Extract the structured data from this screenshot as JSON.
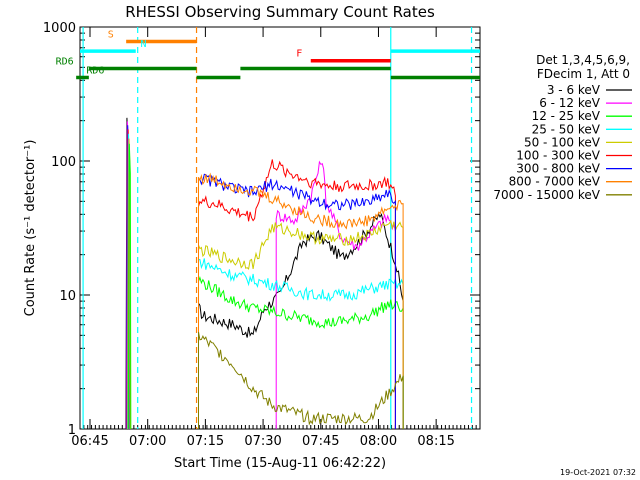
{
  "chart_data": {
    "type": "line",
    "title": "RHESSI Observing Summary Count Rates",
    "xlabel": "Start Time (15-Aug-11 06:42:22)",
    "ylabel": "Count Rate (s⁻¹ detector⁻¹)",
    "yscale": "log",
    "ylim": [
      1,
      1000
    ],
    "xlim_min": [
      0,
      104
    ],
    "x_ticks": [
      {
        "min": 2.6,
        "label": "06:45"
      },
      {
        "min": 17.6,
        "label": "07:00"
      },
      {
        "min": 32.6,
        "label": "07:15"
      },
      {
        "min": 47.6,
        "label": "07:30"
      },
      {
        "min": 62.6,
        "label": "07:45"
      },
      {
        "min": 77.6,
        "label": "08:00"
      },
      {
        "min": 92.6,
        "label": "08:15"
      }
    ],
    "y_ticks": [
      {
        "value": 1,
        "label": "1"
      },
      {
        "value": 10,
        "label": "10"
      },
      {
        "value": 100,
        "label": "100"
      },
      {
        "value": 1000,
        "label": "1000"
      }
    ],
    "legend": {
      "placement": "right",
      "header": [
        "Det 1,3,4,5,6,9,",
        "FDecim 1, Att 0"
      ],
      "entries": [
        {
          "name": "3 - 6 keV",
          "color": "#000000"
        },
        {
          "name": "6 - 12 keV",
          "color": "#ff00ff"
        },
        {
          "name": "12 - 25 keV",
          "color": "#00ff00"
        },
        {
          "name": "25 - 50 keV",
          "color": "#00ffff"
        },
        {
          "name": "50 - 100 keV",
          "color": "#cccc00"
        },
        {
          "name": "100 - 300 keV",
          "color": "#ff0000"
        },
        {
          "name": "300 - 800 keV",
          "color": "#0000ff"
        },
        {
          "name": "800 - 7000 keV",
          "color": "#ff8000"
        },
        {
          "name": "7000 - 15000 keV",
          "color": "#808000"
        }
      ]
    },
    "series": [
      {
        "color": "#000000",
        "segments": [
          [
            [
              30.8,
              8
            ],
            [
              32,
              7
            ],
            [
              40,
              6
            ],
            [
              45,
              5
            ],
            [
              48,
              8
            ],
            [
              52,
              10
            ],
            [
              58,
              25
            ],
            [
              62,
              28
            ],
            [
              68,
              19
            ],
            [
              72,
              24
            ],
            [
              78,
              40
            ],
            [
              82,
              18
            ],
            [
              84,
              9
            ]
          ]
        ]
      },
      {
        "color": "#ff00ff",
        "segments": [
          [
            [
              51,
              40
            ],
            [
              56,
              36
            ],
            [
              60,
              55
            ],
            [
              63,
              105
            ],
            [
              64,
              50
            ],
            [
              68,
              27
            ],
            [
              72,
              23
            ],
            [
              76,
              30
            ],
            [
              80,
              38
            ],
            [
              82,
              30
            ]
          ]
        ]
      },
      {
        "color": "#00ff00",
        "segments": [
          [
            [
              30.8,
              13
            ],
            [
              35,
              11
            ],
            [
              40,
              9
            ],
            [
              45,
              8
            ],
            [
              50,
              7.5
            ],
            [
              55,
              7
            ],
            [
              60,
              6.5
            ],
            [
              65,
              6.2
            ],
            [
              70,
              6.5
            ],
            [
              75,
              7
            ],
            [
              80,
              8.5
            ],
            [
              84,
              8
            ]
          ]
        ]
      },
      {
        "color": "#00ffff",
        "segments": [
          [
            [
              30.8,
              18
            ],
            [
              35,
              16
            ],
            [
              40,
              14
            ],
            [
              45,
              13
            ],
            [
              50,
              12
            ],
            [
              55,
              11
            ],
            [
              60,
              10
            ],
            [
              65,
              10
            ],
            [
              70,
              10
            ],
            [
              75,
              11
            ],
            [
              80,
              12
            ],
            [
              84,
              12
            ]
          ]
        ]
      },
      {
        "color": "#cccc00",
        "segments": [
          [
            [
              30.8,
              22
            ],
            [
              35,
              20
            ],
            [
              40,
              18
            ],
            [
              45,
              17
            ],
            [
              50,
              32
            ],
            [
              55,
              30
            ],
            [
              60,
              27
            ],
            [
              65,
              26
            ],
            [
              70,
              26
            ],
            [
              75,
              28
            ],
            [
              80,
              34
            ],
            [
              84,
              32
            ]
          ]
        ]
      },
      {
        "color": "#ff0000",
        "segments": [
          [
            [
              30.8,
              50
            ],
            [
              35,
              48
            ],
            [
              40,
              42
            ],
            [
              45,
              38
            ],
            [
              50,
              95
            ],
            [
              55,
              80
            ],
            [
              60,
              70
            ],
            [
              65,
              65
            ],
            [
              70,
              65
            ],
            [
              75,
              65
            ],
            [
              80,
              70
            ],
            [
              82,
              55
            ]
          ]
        ]
      },
      {
        "color": "#0000ff",
        "segments": [
          [
            [
              30.8,
              75
            ],
            [
              35,
              70
            ],
            [
              40,
              62
            ],
            [
              45,
              58
            ],
            [
              50,
              68
            ],
            [
              55,
              60
            ],
            [
              60,
              52
            ],
            [
              65,
              48
            ],
            [
              70,
              47
            ],
            [
              75,
              50
            ],
            [
              80,
              58
            ],
            [
              82,
              50
            ]
          ]
        ]
      },
      {
        "color": "#ff8000",
        "segments": [
          [
            [
              30.8,
              75
            ],
            [
              35,
              72
            ],
            [
              40,
              65
            ],
            [
              45,
              60
            ],
            [
              50,
              52
            ],
            [
              55,
              45
            ],
            [
              60,
              38
            ],
            [
              65,
              35
            ],
            [
              70,
              34
            ],
            [
              75,
              36
            ],
            [
              80,
              44
            ],
            [
              84,
              48
            ]
          ]
        ]
      },
      {
        "color": "#808000",
        "segments": [
          [
            [
              30.8,
              5
            ],
            [
              35,
              4
            ],
            [
              40,
              3
            ],
            [
              45,
              2
            ],
            [
              50,
              1.5
            ],
            [
              60,
              1.2
            ],
            [
              75,
              1.2
            ],
            [
              80,
              1.8
            ],
            [
              84,
              2.5
            ]
          ]
        ]
      }
    ],
    "flare_spike": {
      "colors": [
        "#000000",
        "#ff00ff",
        "#0000ff",
        "#ff0000",
        "#00ffff",
        "#ff8000",
        "#00ff00"
      ],
      "x_min": 12.2,
      "peak": 210,
      "base": 1
    },
    "vertical_lines": [
      {
        "min": 0.8,
        "color": "#00ffff",
        "style": "solid"
      },
      {
        "min": 15.0,
        "color": "#00ffff",
        "style": "dashed"
      },
      {
        "min": 30.3,
        "color": "#ff8000",
        "style": "dashed"
      },
      {
        "min": 80.8,
        "color": "#00ffff",
        "style": "solid"
      },
      {
        "min": 101.8,
        "color": "#00ffff",
        "style": "dashed"
      }
    ],
    "flag_bars": [
      {
        "label": "S",
        "color": "#ff8000",
        "y": 780,
        "from": 12.0,
        "to": 30.3,
        "label_at": 8.0,
        "label_color": "#ff8000"
      },
      {
        "label": "N",
        "color": "#00ffff",
        "y": 660,
        "from": 0.0,
        "to": 14.5,
        "label_at": 16.5,
        "label_color": "#00ffff"
      },
      {
        "label": "F",
        "color": "#ff0000",
        "y": 560,
        "from": 60.0,
        "to": 80.8,
        "label_at": 57.0,
        "label_color": "#ff0000"
      },
      {
        "label": "",
        "color": "#00ffff",
        "y": 660,
        "from": 80.8,
        "to": 104.0,
        "label_at": null,
        "label_color": "#00ffff"
      },
      {
        "label": "RD6",
        "color": "#008000",
        "y": 490,
        "from": 2.3,
        "to": 30.3,
        "label_at": -4.0,
        "label_color": "#008000"
      },
      {
        "label": "",
        "color": "#008000",
        "y": 490,
        "from": 41.7,
        "to": 80.8,
        "label_at": null,
        "label_color": "#008000"
      },
      {
        "label": "RD6",
        "color": "#008000",
        "y": 420,
        "from": -1.0,
        "to": 2.3,
        "label_at": 4.0,
        "label_color": "#008000"
      },
      {
        "label": "",
        "color": "#008000",
        "y": 420,
        "from": 30.3,
        "to": 41.7,
        "label_at": null,
        "label_color": "#008000"
      },
      {
        "label": "",
        "color": "#008000",
        "y": 420,
        "from": 80.8,
        "to": 104.0,
        "label_at": null,
        "label_color": "#008000"
      }
    ]
  },
  "footer": {
    "timestamp": "19-Oct-2021 07:32"
  }
}
